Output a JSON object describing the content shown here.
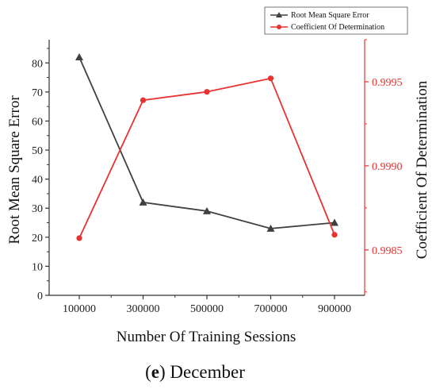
{
  "chart_data": {
    "type": "line",
    "xlabel": "Number Of Training Sessions",
    "ylabel_left": "Root Mean Square Error",
    "ylabel_right": "Coefficient Of Determination",
    "categories": [
      "100000",
      "300000",
      "500000",
      "700000",
      "900000"
    ],
    "ylim_left": [
      0,
      88
    ],
    "yticks_left": [
      "0",
      "10",
      "20",
      "30",
      "40",
      "50",
      "60",
      "70",
      "80"
    ],
    "ylim_right": [
      0.99823,
      0.99975
    ],
    "yticks_right": [
      "0.9985",
      "0.9990",
      "0.9995"
    ],
    "legend_position": "top-right",
    "series": [
      {
        "name": "Root Mean Square Error",
        "axis": "left",
        "color": "#404040",
        "marker": "triangle",
        "values": [
          82,
          32,
          29,
          23,
          25
        ]
      },
      {
        "name": "Coefficient Of Determination",
        "axis": "right",
        "color": "#e8322f",
        "marker": "circle",
        "values": [
          0.99857,
          0.99939,
          0.99944,
          0.99952,
          0.99859
        ]
      }
    ]
  },
  "caption": {
    "letter": "e",
    "text": "December"
  }
}
